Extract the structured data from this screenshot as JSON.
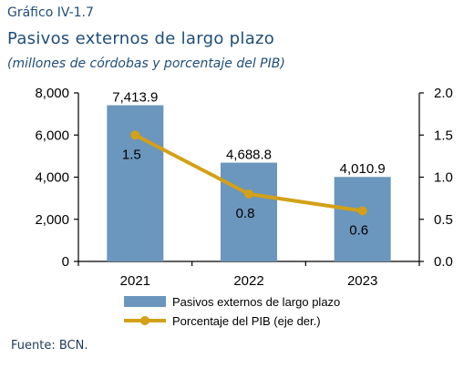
{
  "chart_label": "Gráfico IV-1.7",
  "chart_data": {
    "type": "bar",
    "title": "Pasivos externos de largo plazo",
    "subtitle": "(millones de córdobas y porcentaje del PIB)",
    "categories": [
      "2021",
      "2022",
      "2023"
    ],
    "series": [
      {
        "name": "Pasivos externos de largo plazo",
        "type": "bar",
        "axis": "left",
        "values": [
          7413.9,
          4688.8,
          4010.9
        ],
        "labels": [
          "7,413.9",
          "4,688.8",
          "4,010.9"
        ],
        "color": "#6b96bd"
      },
      {
        "name": "Porcentaje del PIB (eje der.)",
        "type": "line",
        "axis": "right",
        "values": [
          1.5,
          0.8,
          0.6
        ],
        "labels": [
          "1.5",
          "0.8",
          "0.6"
        ],
        "color": "#d4a017"
      }
    ],
    "ylim_left": [
      0,
      8000
    ],
    "yticks_left": [
      "8,000",
      "6,000",
      "4,000",
      "2,000",
      "0"
    ],
    "ylim_right": [
      0,
      2.0
    ],
    "yticks_right": [
      "2.0",
      "1.5",
      "1.0",
      "0.5",
      "0.0"
    ],
    "grid": false,
    "legend_position": "bottom-center"
  },
  "source": "Fuente: BCN."
}
